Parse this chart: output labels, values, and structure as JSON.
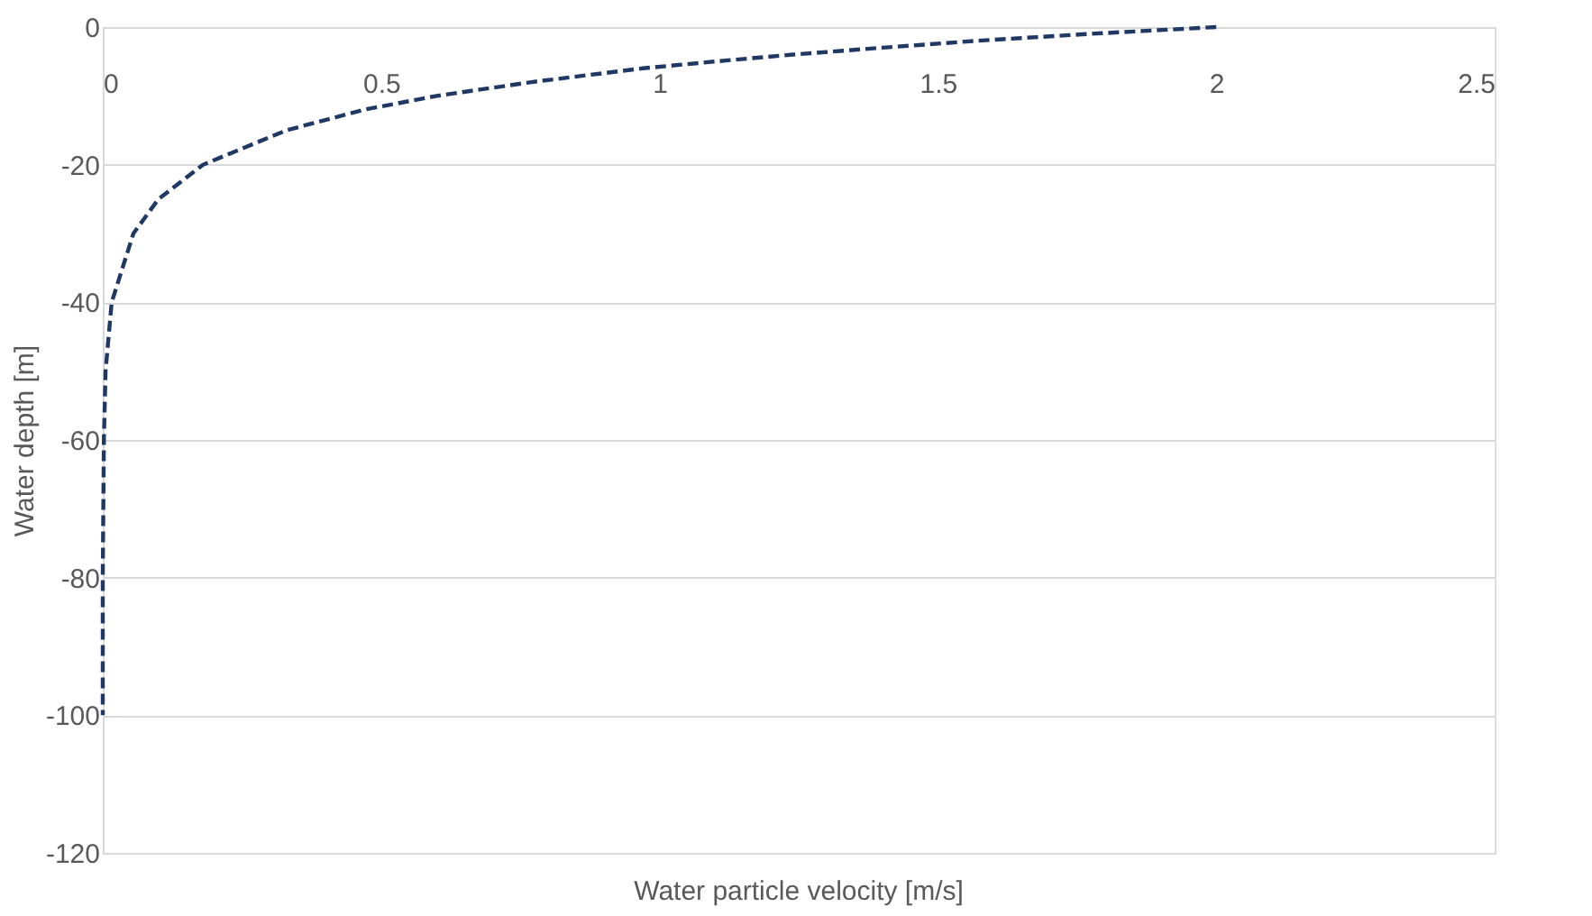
{
  "chart_data": {
    "type": "line",
    "xlabel": "Water particle velocity [m/s]",
    "ylabel": "Water depth [m]",
    "series": [
      {
        "color": "#203864",
        "line_style": "dashed",
        "x": [
          2.0,
          1.77,
          1.57,
          1.4,
          1.24,
          1.1,
          0.97,
          0.77,
          0.6,
          0.47,
          0.33,
          0.18,
          0.1,
          0.055,
          0.016,
          0.005,
          0.002,
          0,
          0
        ],
        "values": [
          0,
          -1,
          -2,
          -3,
          -4,
          -5,
          -6,
          -8,
          -10,
          -12,
          -15,
          -20,
          -25,
          -30,
          -40,
          -50,
          -60,
          -80,
          -100
        ]
      }
    ],
    "xlim": [
      0,
      2.5
    ],
    "xticks": [
      0,
      0.5,
      1,
      1.5,
      2,
      2.5
    ],
    "ylim": [
      -120,
      0
    ],
    "yticks": [
      -120,
      -100,
      -80,
      -60,
      -40,
      -20,
      0
    ],
    "grid": "y"
  }
}
